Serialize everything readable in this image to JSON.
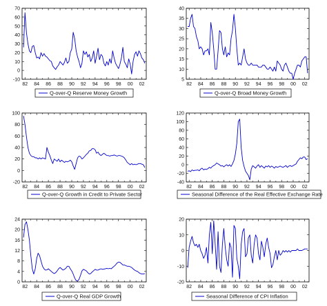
{
  "chart_data": [
    {
      "type": "line",
      "legend": "Q-over-Q Reserve Money Growth",
      "series": [
        {
          "name": "Q-over-Q Reserve Money Growth",
          "color": "#0000cc"
        }
      ],
      "ylim": [
        -10,
        70
      ],
      "yticks": [
        -10,
        0,
        10,
        20,
        30,
        40,
        50,
        60,
        70
      ],
      "xticks": [
        "82",
        "84",
        "86",
        "88",
        "90",
        "92",
        "94",
        "96",
        "98",
        "00",
        "02"
      ],
      "x": [
        1981.75,
        1982,
        1982.25,
        1982.5,
        1982.75,
        1983,
        1983.25,
        1983.5,
        1983.75,
        1984,
        1984.25,
        1984.5,
        1984.75,
        1985,
        1985.25,
        1985.5,
        1985.75,
        1986,
        1986.25,
        1986.5,
        1986.75,
        1987,
        1987.25,
        1987.5,
        1987.75,
        1988,
        1988.25,
        1988.5,
        1988.75,
        1989,
        1989.25,
        1989.5,
        1989.75,
        1990,
        1990.25,
        1990.5,
        1990.75,
        1991,
        1991.25,
        1991.5,
        1991.75,
        1992,
        1992.25,
        1992.5,
        1992.75,
        1993,
        1993.25,
        1993.5,
        1993.75,
        1994,
        1994.25,
        1994.5,
        1994.75,
        1995,
        1995.25,
        1995.5,
        1995.75,
        1996,
        1996.25,
        1996.5,
        1996.75,
        1997,
        1997.25,
        1997.5,
        1997.75,
        1998,
        1998.25,
        1998.5,
        1998.75,
        1999,
        1999.25,
        1999.5,
        1999.75,
        2000,
        2000.25,
        2000.5,
        2000.75,
        2001,
        2001.25,
        2001.5,
        2001.75,
        2002,
        2002.25,
        2002.5
      ],
      "y": [
        26,
        65,
        42,
        30,
        22,
        20,
        27,
        28,
        20,
        14,
        15,
        13,
        20,
        16,
        19,
        16,
        15,
        13,
        11,
        10,
        5,
        3,
        1,
        4,
        6,
        10,
        8,
        6,
        9,
        14,
        8,
        10,
        20,
        24,
        43,
        36,
        22,
        15,
        10,
        3,
        8,
        22,
        18,
        21,
        15,
        18,
        10,
        14,
        22,
        8,
        16,
        25,
        12,
        18,
        16,
        8,
        5,
        10,
        6,
        13,
        8,
        22,
        14,
        8,
        5,
        2,
        7,
        14,
        26,
        10,
        7,
        3,
        13,
        7,
        -4,
        10,
        18,
        21,
        16,
        22,
        19,
        14,
        12,
        8
      ]
    },
    {
      "type": "line",
      "legend": "Q-over-Q Broad Money Growth",
      "series": [
        {
          "name": "Q-over-Q Broad Money Growth",
          "color": "#0000cc"
        }
      ],
      "ylim": [
        5,
        40
      ],
      "yticks": [
        5,
        10,
        15,
        20,
        25,
        30,
        35,
        40
      ],
      "xticks": [
        "82",
        "84",
        "86",
        "88",
        "90",
        "92",
        "94",
        "96",
        "98",
        "00",
        "02"
      ],
      "x": [
        1981.75,
        1982,
        1982.25,
        1982.5,
        1982.75,
        1983,
        1983.25,
        1983.5,
        1983.75,
        1984,
        1984.25,
        1984.5,
        1984.75,
        1985,
        1985.25,
        1985.5,
        1985.75,
        1986,
        1986.25,
        1986.5,
        1986.75,
        1987,
        1987.25,
        1987.5,
        1987.75,
        1988,
        1988.25,
        1988.5,
        1988.75,
        1989,
        1989.25,
        1989.5,
        1989.75,
        1990,
        1990.25,
        1990.5,
        1990.75,
        1991,
        1991.25,
        1991.5,
        1991.75,
        1992,
        1992.25,
        1992.5,
        1992.75,
        1993,
        1993.25,
        1993.5,
        1993.75,
        1994,
        1994.25,
        1994.5,
        1994.75,
        1995,
        1995.25,
        1995.5,
        1995.75,
        1996,
        1996.25,
        1996.5,
        1996.75,
        1997,
        1997.25,
        1997.5,
        1997.75,
        1998,
        1998.25,
        1998.5,
        1998.75,
        1999,
        1999.25,
        1999.5,
        1999.75,
        2000,
        2000.25,
        2000.5,
        2000.75,
        2001,
        2001.25,
        2001.5,
        2001.75,
        2002,
        2002.25,
        2002.5
      ],
      "y": [
        31,
        31,
        35,
        37,
        31,
        30,
        26,
        24,
        20,
        21,
        20,
        17,
        19,
        19,
        20,
        17,
        33,
        28,
        20,
        10,
        10,
        19,
        29,
        28,
        20,
        17,
        21,
        16,
        18,
        17,
        25,
        29,
        37,
        30,
        20,
        12,
        13,
        12,
        16,
        20,
        15,
        13,
        12,
        12,
        13,
        12,
        12,
        12,
        12,
        11,
        11,
        11,
        12,
        12,
        11,
        10,
        10,
        11,
        10,
        9,
        11,
        9,
        14,
        13,
        12,
        10,
        9,
        12,
        13,
        11,
        9,
        8,
        8,
        5,
        8,
        10,
        12,
        12,
        11,
        14,
        15,
        16,
        16,
        8
      ]
    },
    {
      "type": "line",
      "legend": "Q-over-Q Growth in Credit to Private Sector",
      "series": [
        {
          "name": "Q-over-Q Growth in Credit to Private Sector",
          "color": "#0000cc"
        }
      ],
      "ylim": [
        -20,
        100
      ],
      "yticks": [
        -20,
        0,
        20,
        40,
        60,
        80,
        100
      ],
      "xticks": [
        "82",
        "84",
        "86",
        "88",
        "90",
        "92",
        "94",
        "96",
        "98",
        "00",
        "02"
      ],
      "x": [
        1981.75,
        1982,
        1982.25,
        1982.5,
        1982.75,
        1983,
        1983.25,
        1983.5,
        1983.75,
        1984,
        1984.25,
        1984.5,
        1984.75,
        1985,
        1985.25,
        1985.5,
        1985.75,
        1986,
        1986.25,
        1986.5,
        1986.75,
        1987,
        1987.25,
        1987.5,
        1987.75,
        1988,
        1988.25,
        1988.5,
        1988.75,
        1989,
        1989.25,
        1989.5,
        1989.75,
        1990,
        1990.25,
        1990.5,
        1990.75,
        1991,
        1991.25,
        1991.5,
        1991.75,
        1992,
        1992.25,
        1992.5,
        1992.75,
        1993,
        1993.25,
        1993.5,
        1993.75,
        1994,
        1994.25,
        1994.5,
        1994.75,
        1995,
        1995.25,
        1995.5,
        1995.75,
        1996,
        1996.25,
        1996.5,
        1996.75,
        1997,
        1997.25,
        1997.5,
        1997.75,
        1998,
        1998.25,
        1998.5,
        1998.75,
        1999,
        1999.25,
        1999.5,
        1999.75,
        2000,
        2000.25,
        2000.5,
        2000.75,
        2001,
        2001.25,
        2001.5,
        2001.75,
        2002,
        2002.25,
        2002.5
      ],
      "y": [
        95,
        80,
        58,
        40,
        30,
        26,
        24,
        24,
        22,
        22,
        20,
        22,
        20,
        22,
        21,
        20,
        40,
        32,
        26,
        18,
        12,
        20,
        18,
        16,
        20,
        15,
        18,
        16,
        14,
        16,
        15,
        16,
        18,
        15,
        8,
        2,
        12,
        22,
        25,
        24,
        20,
        22,
        25,
        28,
        30,
        34,
        35,
        38,
        38,
        36,
        30,
        32,
        28,
        26,
        28,
        30,
        28,
        26,
        26,
        25,
        26,
        26,
        27,
        26,
        25,
        26,
        26,
        25,
        24,
        22,
        18,
        14,
        12,
        10,
        12,
        10,
        11,
        10,
        11,
        12,
        12,
        11,
        10,
        5
      ]
    },
    {
      "type": "line",
      "legend": "Seasonal Difference of the Real Effective Exchange Rate",
      "series": [
        {
          "name": "Seasonal Difference of the Real Effective Exchange Rate",
          "color": "#0000cc"
        }
      ],
      "ylim": [
        -40,
        120
      ],
      "yticks": [
        -40,
        -20,
        0,
        20,
        40,
        60,
        80,
        100,
        120
      ],
      "xticks": [
        "82",
        "84",
        "86",
        "88",
        "90",
        "92",
        "94",
        "96",
        "98",
        "00",
        "02"
      ],
      "x": [
        1981.75,
        1982,
        1982.25,
        1982.5,
        1982.75,
        1983,
        1983.25,
        1983.5,
        1983.75,
        1984,
        1984.25,
        1984.5,
        1984.75,
        1985,
        1985.25,
        1985.5,
        1985.75,
        1986,
        1986.25,
        1986.5,
        1986.75,
        1987,
        1987.25,
        1987.5,
        1987.75,
        1988,
        1988.25,
        1988.5,
        1988.75,
        1989,
        1989.25,
        1989.5,
        1989.75,
        1990,
        1990.25,
        1990.5,
        1990.75,
        1991,
        1991.25,
        1991.5,
        1991.75,
        1992,
        1992.25,
        1992.5,
        1992.75,
        1993,
        1993.25,
        1993.5,
        1993.75,
        1994,
        1994.25,
        1994.5,
        1994.75,
        1995,
        1995.25,
        1995.5,
        1995.75,
        1996,
        1996.25,
        1996.5,
        1996.75,
        1997,
        1997.25,
        1997.5,
        1997.75,
        1998,
        1998.25,
        1998.5,
        1998.75,
        1999,
        1999.25,
        1999.5,
        1999.75,
        2000,
        2000.25,
        2000.5,
        2000.75,
        2001,
        2001.25,
        2001.5,
        2001.75,
        2002,
        2002.25,
        2002.5
      ],
      "y": [
        -15,
        -14,
        -16,
        -12,
        -14,
        -13,
        -13,
        -12,
        -14,
        -10,
        -8,
        -12,
        -10,
        -11,
        -9,
        -6,
        -8,
        -4,
        -2,
        0,
        4,
        2,
        0,
        -3,
        -2,
        -5,
        -2,
        0,
        -3,
        0,
        -4,
        2,
        10,
        25,
        50,
        100,
        106,
        40,
        10,
        -4,
        -15,
        -20,
        -25,
        -35,
        -10,
        -2,
        -5,
        -8,
        -3,
        0,
        -6,
        -2,
        -5,
        -8,
        -3,
        -5,
        -2,
        -6,
        -3,
        -5,
        -8,
        -4,
        -6,
        -5,
        -3,
        -5,
        -6,
        -4,
        -2,
        -6,
        -3,
        -2,
        -4,
        -2,
        0,
        2,
        8,
        12,
        16,
        14,
        18,
        18,
        12,
        14
      ]
    },
    {
      "type": "line",
      "legend": "Q-over-Q Real GDP Growth",
      "series": [
        {
          "name": "Q-over-Q Real GDP Growth",
          "color": "#0000cc"
        }
      ],
      "ylim": [
        0,
        24
      ],
      "yticks": [
        0,
        4,
        8,
        12,
        16,
        20,
        24
      ],
      "xticks": [
        "82",
        "84",
        "86",
        "88",
        "90",
        "92",
        "94",
        "96",
        "98",
        "00",
        "02"
      ],
      "x": [
        1981.75,
        1982,
        1982.25,
        1982.5,
        1982.75,
        1983,
        1983.25,
        1983.5,
        1983.75,
        1984,
        1984.25,
        1984.5,
        1984.75,
        1985,
        1985.25,
        1985.5,
        1985.75,
        1986,
        1986.25,
        1986.5,
        1986.75,
        1987,
        1987.25,
        1987.5,
        1987.75,
        1988,
        1988.25,
        1988.5,
        1988.75,
        1989,
        1989.25,
        1989.5,
        1989.75,
        1990,
        1990.25,
        1990.5,
        1990.75,
        1991,
        1991.25,
        1991.5,
        1991.75,
        1992,
        1992.25,
        1992.5,
        1992.75,
        1993,
        1993.25,
        1993.5,
        1993.75,
        1994,
        1994.25,
        1994.5,
        1994.75,
        1995,
        1995.25,
        1995.5,
        1995.75,
        1996,
        1996.25,
        1996.5,
        1996.75,
        1997,
        1997.25,
        1997.5,
        1997.75,
        1998,
        1998.25,
        1998.5,
        1998.75,
        1999,
        1999.25,
        1999.5,
        1999.75,
        2000,
        2000.25,
        2000.5,
        2000.75,
        2001,
        2001.25,
        2001.5,
        2001.75,
        2002,
        2002.25,
        2002.5
      ],
      "y": [
        17,
        22,
        23,
        20,
        16,
        10,
        5,
        3,
        5,
        9,
        11,
        10,
        8,
        6,
        5,
        4.5,
        4.6,
        5,
        4.5,
        4,
        3.5,
        3.2,
        3.5,
        4.2,
        5,
        5.5,
        5,
        4.5,
        4.8,
        5.2,
        6,
        6,
        5,
        4.2,
        3,
        1.5,
        0.5,
        0.3,
        1,
        2.5,
        4.2,
        4.8,
        4.5,
        4.2,
        3.5,
        3,
        3.2,
        3.8,
        4.3,
        4.8,
        4.5,
        4.5,
        4.8,
        5,
        4.8,
        4.9,
        5,
        5.2,
        5,
        5.2,
        5,
        5.5,
        6,
        6.5,
        7.2,
        7.6,
        7.5,
        7,
        6.5,
        6.5,
        6.2,
        6,
        6,
        5.8,
        5.5,
        5,
        4.5,
        4.2,
        4,
        3.5,
        3.2,
        3,
        3,
        3.2
      ]
    },
    {
      "type": "line",
      "legend": "Seasonal Difference of CPI Inflation",
      "series": [
        {
          "name": "Seasonal Difference of CPI Inflation",
          "color": "#0000cc"
        }
      ],
      "ylim": [
        -20,
        20
      ],
      "yticks": [
        -20,
        -10,
        0,
        10,
        20
      ],
      "xticks": [
        "82",
        "84",
        "86",
        "88",
        "90",
        "92",
        "94",
        "96",
        "98",
        "00",
        "02"
      ],
      "x": [
        1981.75,
        1982,
        1982.25,
        1982.5,
        1982.75,
        1983,
        1983.25,
        1983.5,
        1983.75,
        1984,
        1984.25,
        1984.5,
        1984.75,
        1985,
        1985.25,
        1985.5,
        1985.75,
        1986,
        1986.25,
        1986.5,
        1986.75,
        1987,
        1987.25,
        1987.5,
        1987.75,
        1988,
        1988.25,
        1988.5,
        1988.75,
        1989,
        1989.25,
        1989.5,
        1989.75,
        1990,
        1990.25,
        1990.5,
        1990.75,
        1991,
        1991.25,
        1991.5,
        1991.75,
        1992,
        1992.25,
        1992.5,
        1992.75,
        1993,
        1993.25,
        1993.5,
        1993.75,
        1994,
        1994.25,
        1994.5,
        1994.75,
        1995,
        1995.25,
        1995.5,
        1995.75,
        1996,
        1996.25,
        1996.5,
        1996.75,
        1997,
        1997.25,
        1997.5,
        1997.75,
        1998,
        1998.25,
        1998.5,
        1998.75,
        1999,
        1999.25,
        1999.5,
        1999.75,
        2000,
        2000.25,
        2000.5,
        2000.75,
        2001,
        2001.25,
        2001.5,
        2001.75,
        2002,
        2002.25,
        2002.5
      ],
      "y": [
        -11,
        2,
        6,
        9,
        5,
        3,
        4,
        2,
        4,
        0,
        -2,
        -5,
        -3,
        2,
        -8,
        10,
        18,
        -2,
        19,
        4,
        -12,
        12,
        -10,
        -14,
        4,
        14,
        2,
        -6,
        -10,
        5,
        2,
        -17,
        16,
        14,
        -5,
        -10,
        -18,
        4,
        12,
        14,
        -4,
        -2,
        8,
        10,
        -3,
        -8,
        4,
        10,
        8,
        -2,
        -6,
        6,
        2,
        -4,
        4,
        8,
        2,
        -2,
        -11,
        -9,
        -4,
        0,
        -6,
        0,
        -3,
        -2,
        0,
        -1,
        0,
        -1,
        0,
        -1,
        0,
        0,
        0,
        0,
        1,
        0,
        0,
        0,
        0.5,
        1,
        1,
        1
      ]
    }
  ]
}
